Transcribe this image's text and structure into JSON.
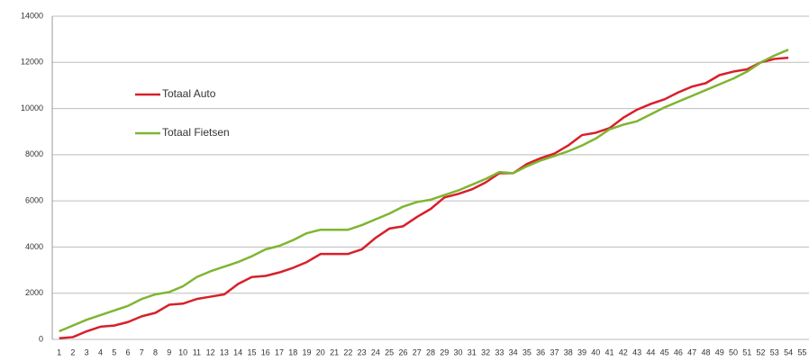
{
  "chart_data": {
    "type": "line",
    "categories": [
      1,
      2,
      3,
      4,
      5,
      6,
      7,
      8,
      9,
      10,
      11,
      12,
      13,
      14,
      15,
      16,
      17,
      18,
      19,
      20,
      21,
      22,
      23,
      24,
      25,
      26,
      27,
      28,
      29,
      30,
      31,
      32,
      33,
      34,
      35,
      36,
      37,
      38,
      39,
      40,
      41,
      42,
      43,
      44,
      45,
      46,
      47,
      48,
      49,
      50,
      51,
      52,
      53,
      54,
      55
    ],
    "series": [
      {
        "name": "Totaal Auto",
        "color": "#d7202a",
        "values": [
          50,
          100,
          350,
          550,
          600,
          750,
          1000,
          1150,
          1500,
          1550,
          1750,
          1850,
          1950,
          2400,
          2700,
          2750,
          2900,
          3100,
          3350,
          3700,
          3700,
          3700,
          3900,
          4400,
          4800,
          4900,
          5300,
          5650,
          6150,
          6300,
          6500,
          6800,
          7200,
          7200,
          7600,
          7850,
          8050,
          8400,
          8850,
          8950,
          9150,
          9600,
          9950,
          10200,
          10400,
          10700,
          10950,
          11100,
          11450,
          11600,
          11700,
          12000,
          12150,
          12200,
          null
        ]
      },
      {
        "name": "Totaal Fietsen",
        "color": "#7fb531",
        "values": [
          350,
          600,
          850,
          1050,
          1250,
          1450,
          1750,
          1950,
          2050,
          2300,
          2700,
          2950,
          3150,
          3350,
          3600,
          3900,
          4050,
          4300,
          4600,
          4750,
          4750,
          4750,
          4950,
          5200,
          5450,
          5750,
          5950,
          6050,
          6250,
          6450,
          6700,
          6950,
          7250,
          7200,
          7500,
          7750,
          7950,
          8150,
          8400,
          8700,
          9100,
          9300,
          9450,
          9750,
          10050,
          10300,
          10550,
          10800,
          11050,
          11300,
          11600,
          12000,
          12300,
          12550,
          null
        ]
      }
    ],
    "ylim": [
      0,
      14000
    ],
    "yticks": [
      0,
      2000,
      4000,
      6000,
      8000,
      10000,
      12000,
      14000
    ],
    "grid": true,
    "legend": "left"
  }
}
